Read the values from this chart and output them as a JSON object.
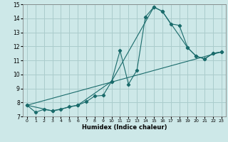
{
  "xlabel": "Humidex (Indice chaleur)",
  "xlim": [
    -0.5,
    23.5
  ],
  "ylim": [
    7,
    15
  ],
  "xticks": [
    0,
    1,
    2,
    3,
    4,
    5,
    6,
    7,
    8,
    9,
    10,
    11,
    12,
    13,
    14,
    15,
    16,
    17,
    18,
    19,
    20,
    21,
    22,
    23
  ],
  "yticks": [
    7,
    8,
    9,
    10,
    11,
    12,
    13,
    14,
    15
  ],
  "bg_color": "#cde8e8",
  "line_color": "#1a6b6b",
  "grid_color": "#aacccc",
  "line1_x": [
    0,
    1,
    2,
    3,
    4,
    5,
    6,
    7,
    8,
    9,
    10,
    11,
    12,
    13,
    14,
    15,
    16,
    17,
    18,
    19,
    20,
    21,
    22,
    23
  ],
  "line1_y": [
    7.8,
    7.3,
    7.5,
    7.4,
    7.5,
    7.7,
    7.8,
    8.05,
    8.45,
    8.5,
    9.5,
    11.7,
    9.3,
    10.3,
    14.1,
    14.8,
    14.5,
    13.6,
    13.5,
    11.9,
    11.3,
    11.1,
    11.5,
    11.6
  ],
  "line2_x": [
    0,
    3,
    6,
    10,
    15,
    16,
    19,
    20,
    21,
    22,
    23
  ],
  "line2_y": [
    7.8,
    7.4,
    7.8,
    9.5,
    14.8,
    14.5,
    11.9,
    11.3,
    11.1,
    11.5,
    11.6
  ],
  "line3_x": [
    0,
    23
  ],
  "line3_y": [
    7.8,
    11.6
  ]
}
